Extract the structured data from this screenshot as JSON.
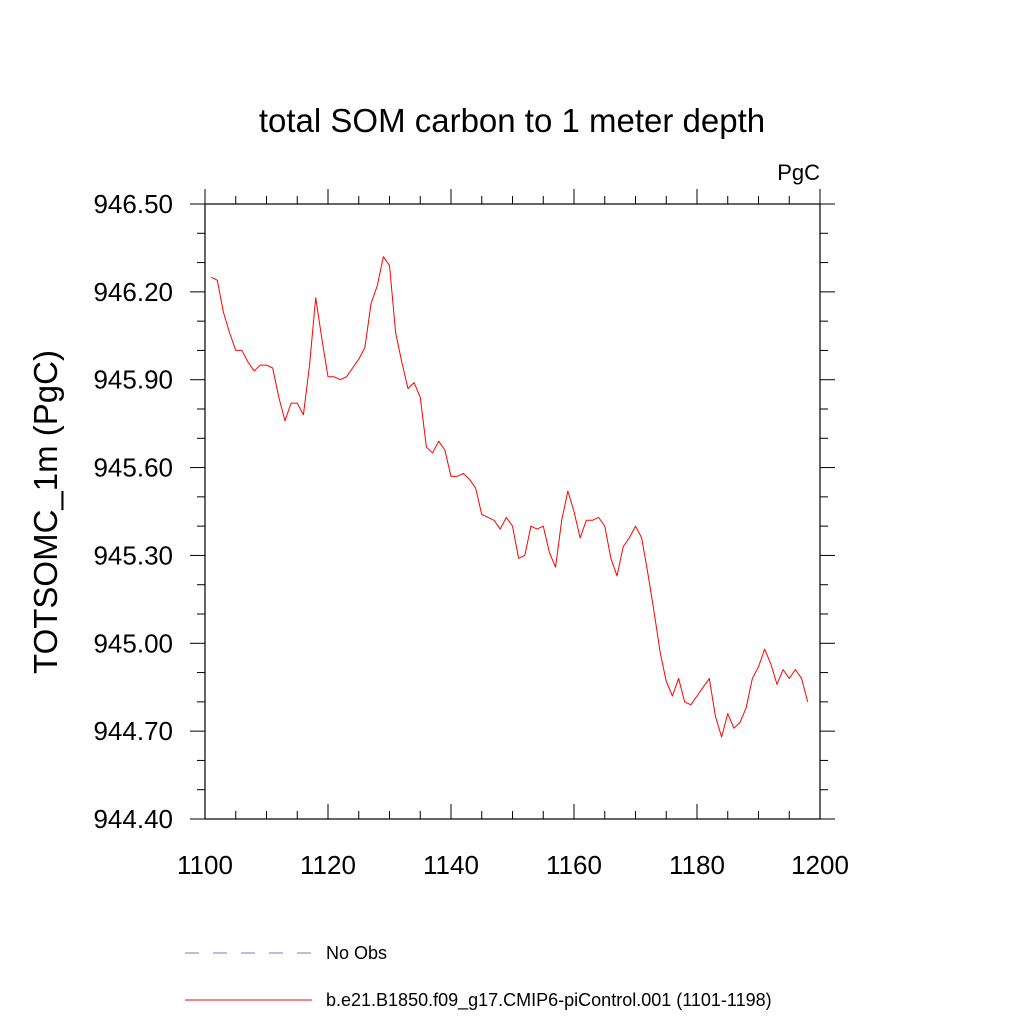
{
  "chart_data": {
    "type": "line",
    "title": "total SOM carbon to 1 meter depth",
    "units_label": "PgC",
    "xlabel": "",
    "ylabel": "TOTSOMC_1m  (PgC)",
    "xlim": [
      1100,
      1200
    ],
    "ylim": [
      944.4,
      946.5
    ],
    "xticks": [
      1100,
      1120,
      1140,
      1160,
      1180,
      1200
    ],
    "yticks": [
      944.4,
      944.7,
      945.0,
      945.3,
      945.6,
      945.9,
      946.2,
      946.5
    ],
    "ytick_labels": [
      "944.40",
      "944.70",
      "945.00",
      "945.30",
      "945.60",
      "945.90",
      "946.20",
      "946.50"
    ],
    "series": [
      {
        "name": "b.e21.B1850.f09_g17.CMIP6-piControl.001 (1101-1198)",
        "color": "#ff0000",
        "style": "solid",
        "x": [
          1101,
          1102,
          1103,
          1104,
          1105,
          1106,
          1107,
          1108,
          1109,
          1110,
          1111,
          1112,
          1113,
          1114,
          1115,
          1116,
          1117,
          1118,
          1119,
          1120,
          1121,
          1122,
          1123,
          1124,
          1125,
          1126,
          1127,
          1128,
          1129,
          1130,
          1131,
          1132,
          1133,
          1134,
          1135,
          1136,
          1137,
          1138,
          1139,
          1140,
          1141,
          1142,
          1143,
          1144,
          1145,
          1146,
          1147,
          1148,
          1149,
          1150,
          1151,
          1152,
          1153,
          1154,
          1155,
          1156,
          1157,
          1158,
          1159,
          1160,
          1161,
          1162,
          1163,
          1164,
          1165,
          1166,
          1167,
          1168,
          1169,
          1170,
          1171,
          1172,
          1173,
          1174,
          1175,
          1176,
          1177,
          1178,
          1179,
          1180,
          1181,
          1182,
          1183,
          1184,
          1185,
          1186,
          1187,
          1188,
          1189,
          1190,
          1191,
          1192,
          1193,
          1194,
          1195,
          1196,
          1197,
          1198
        ],
        "values": [
          946.25,
          946.24,
          946.13,
          946.06,
          946.0,
          946.0,
          945.96,
          945.93,
          945.95,
          945.95,
          945.94,
          945.84,
          945.76,
          945.82,
          945.82,
          945.78,
          945.95,
          946.18,
          946.04,
          945.91,
          945.91,
          945.9,
          945.91,
          945.94,
          945.97,
          946.01,
          946.16,
          946.22,
          946.32,
          946.29,
          946.06,
          945.96,
          945.87,
          945.89,
          945.84,
          945.67,
          945.65,
          945.69,
          945.66,
          945.57,
          945.57,
          945.58,
          945.56,
          945.53,
          945.44,
          945.43,
          945.42,
          945.39,
          945.43,
          945.4,
          945.29,
          945.3,
          945.4,
          945.39,
          945.4,
          945.31,
          945.26,
          945.42,
          945.52,
          945.45,
          945.36,
          945.42,
          945.42,
          945.43,
          945.4,
          945.29,
          945.23,
          945.33,
          945.36,
          945.4,
          945.36,
          945.24,
          945.11,
          944.97,
          944.87,
          944.82,
          944.88,
          944.8,
          944.79,
          944.82,
          944.85,
          944.88,
          944.75,
          944.68,
          944.76,
          944.71,
          944.73,
          944.78,
          944.88,
          944.92,
          944.98,
          944.93,
          944.86,
          944.91,
          944.88,
          944.91,
          944.88,
          944.8
        ]
      }
    ],
    "legend": [
      {
        "label": "No Obs",
        "color": "#7777cc",
        "style": "dashed"
      },
      {
        "label": "b.e21.B1850.f09_g17.CMIP6-piControl.001 (1101-1198)",
        "color": "#ff0000",
        "style": "solid"
      }
    ],
    "grid": false,
    "legend_position": "bottom"
  }
}
